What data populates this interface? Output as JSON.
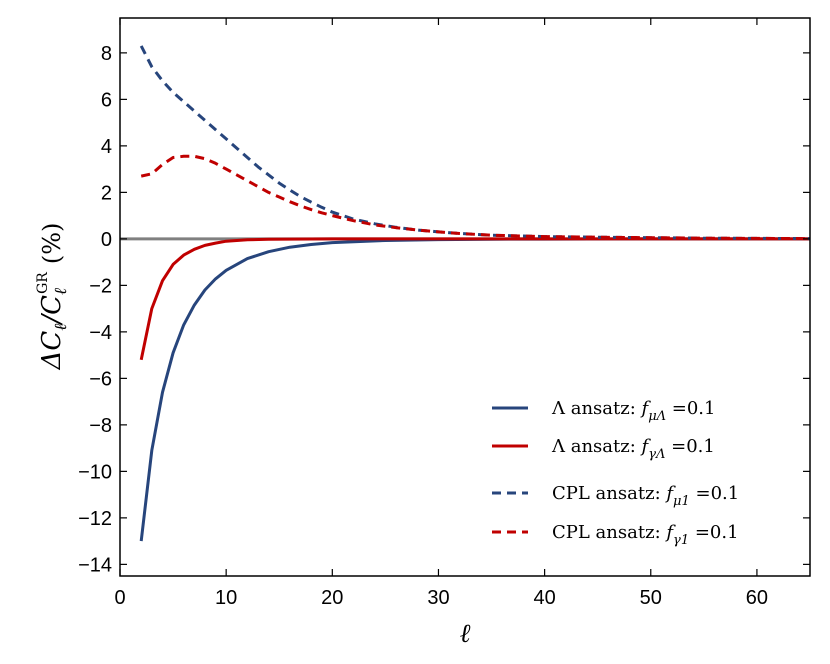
{
  "chart_data": {
    "type": "line",
    "xlabel": "ℓ",
    "ylabel": "ΔC_ℓ/C_ℓ^GR (%)",
    "ylabel_parts": {
      "delta_c": "ΔC",
      "sub_l": "ℓ",
      "slash_c": "/C",
      "sup": "GR",
      "unit": "(%)"
    },
    "xlim": [
      0,
      65
    ],
    "ylim": [
      -14.5,
      9.5
    ],
    "xticks": [
      0,
      10,
      20,
      30,
      40,
      50,
      60
    ],
    "yticks": [
      8,
      6,
      4,
      2,
      0,
      -2,
      -4,
      -6,
      -8,
      -10,
      -12,
      -14
    ],
    "ytick_labels": [
      "8",
      "6",
      "4",
      "2",
      "0",
      "−2",
      "−4",
      "−6",
      "−8",
      "−10",
      "−12",
      "−14"
    ],
    "zero_line_color": "#808080",
    "series": [
      {
        "name": "Λ ansatz: f_μΛ = 0.1",
        "legend_prefix": "Λ ansatz",
        "legend_sub": "μΛ",
        "legend_value": "0.1",
        "color": "#27457c",
        "dash": "solid",
        "x": [
          2,
          3,
          4,
          5,
          6,
          7,
          8,
          9,
          10,
          12,
          14,
          16,
          18,
          20,
          25,
          30,
          35,
          40,
          50,
          60,
          65
        ],
        "y": [
          -13.0,
          -9.1,
          -6.6,
          -4.9,
          -3.7,
          -2.85,
          -2.2,
          -1.72,
          -1.35,
          -0.85,
          -0.55,
          -0.36,
          -0.24,
          -0.16,
          -0.07,
          -0.03,
          -0.015,
          -0.008,
          -0.003,
          -0.001,
          0
        ]
      },
      {
        "name": "Λ ansatz: f_γΛ = 0.1",
        "legend_prefix": "Λ ansatz",
        "legend_sub": "γΛ",
        "legend_value": "0.1",
        "color": "#c00000",
        "dash": "solid",
        "x": [
          2,
          3,
          4,
          5,
          6,
          7,
          8,
          9,
          10,
          12,
          14,
          16,
          20,
          30,
          40,
          65
        ],
        "y": [
          -5.2,
          -3.0,
          -1.8,
          -1.1,
          -0.7,
          -0.45,
          -0.28,
          -0.18,
          -0.1,
          -0.04,
          -0.02,
          -0.01,
          -0.003,
          0,
          0,
          0
        ]
      },
      {
        "name": "CPL ansatz: f_μ1 = 0.1",
        "legend_prefix": "CPL ansatz",
        "legend_sub": "μ1",
        "legend_value": "0.1",
        "color": "#27457c",
        "dash": "dashed",
        "x": [
          2,
          3,
          4,
          5,
          6,
          7,
          8,
          9,
          10,
          11,
          12,
          13,
          14,
          15,
          16,
          17,
          18,
          19,
          20,
          22,
          24,
          26,
          28,
          30,
          32,
          35,
          40,
          45,
          50,
          55,
          60,
          65
        ],
        "y": [
          8.3,
          7.4,
          6.8,
          6.3,
          5.9,
          5.5,
          5.1,
          4.7,
          4.3,
          3.9,
          3.5,
          3.1,
          2.75,
          2.4,
          2.1,
          1.82,
          1.58,
          1.36,
          1.15,
          0.85,
          0.65,
          0.5,
          0.38,
          0.3,
          0.23,
          0.16,
          0.1,
          0.07,
          0.05,
          0.03,
          0.02,
          0.01
        ]
      },
      {
        "name": "CPL ansatz: f_γ1 = 0.1",
        "legend_prefix": "CPL ansatz",
        "legend_sub": "γ1",
        "legend_value": "0.1",
        "color": "#c00000",
        "dash": "dashed",
        "x": [
          2,
          3,
          4,
          5,
          6,
          7,
          8,
          9,
          10,
          11,
          12,
          13,
          14,
          15,
          16,
          17,
          18,
          19,
          20,
          22,
          24,
          26,
          28,
          30,
          32,
          35,
          40,
          45,
          50,
          55,
          60,
          65
        ],
        "y": [
          2.7,
          2.8,
          3.2,
          3.5,
          3.55,
          3.55,
          3.45,
          3.25,
          3.0,
          2.75,
          2.5,
          2.25,
          2.0,
          1.8,
          1.6,
          1.42,
          1.26,
          1.12,
          1.0,
          0.78,
          0.6,
          0.48,
          0.38,
          0.3,
          0.23,
          0.16,
          0.1,
          0.07,
          0.05,
          0.03,
          0.02,
          0.01
        ]
      }
    ]
  }
}
